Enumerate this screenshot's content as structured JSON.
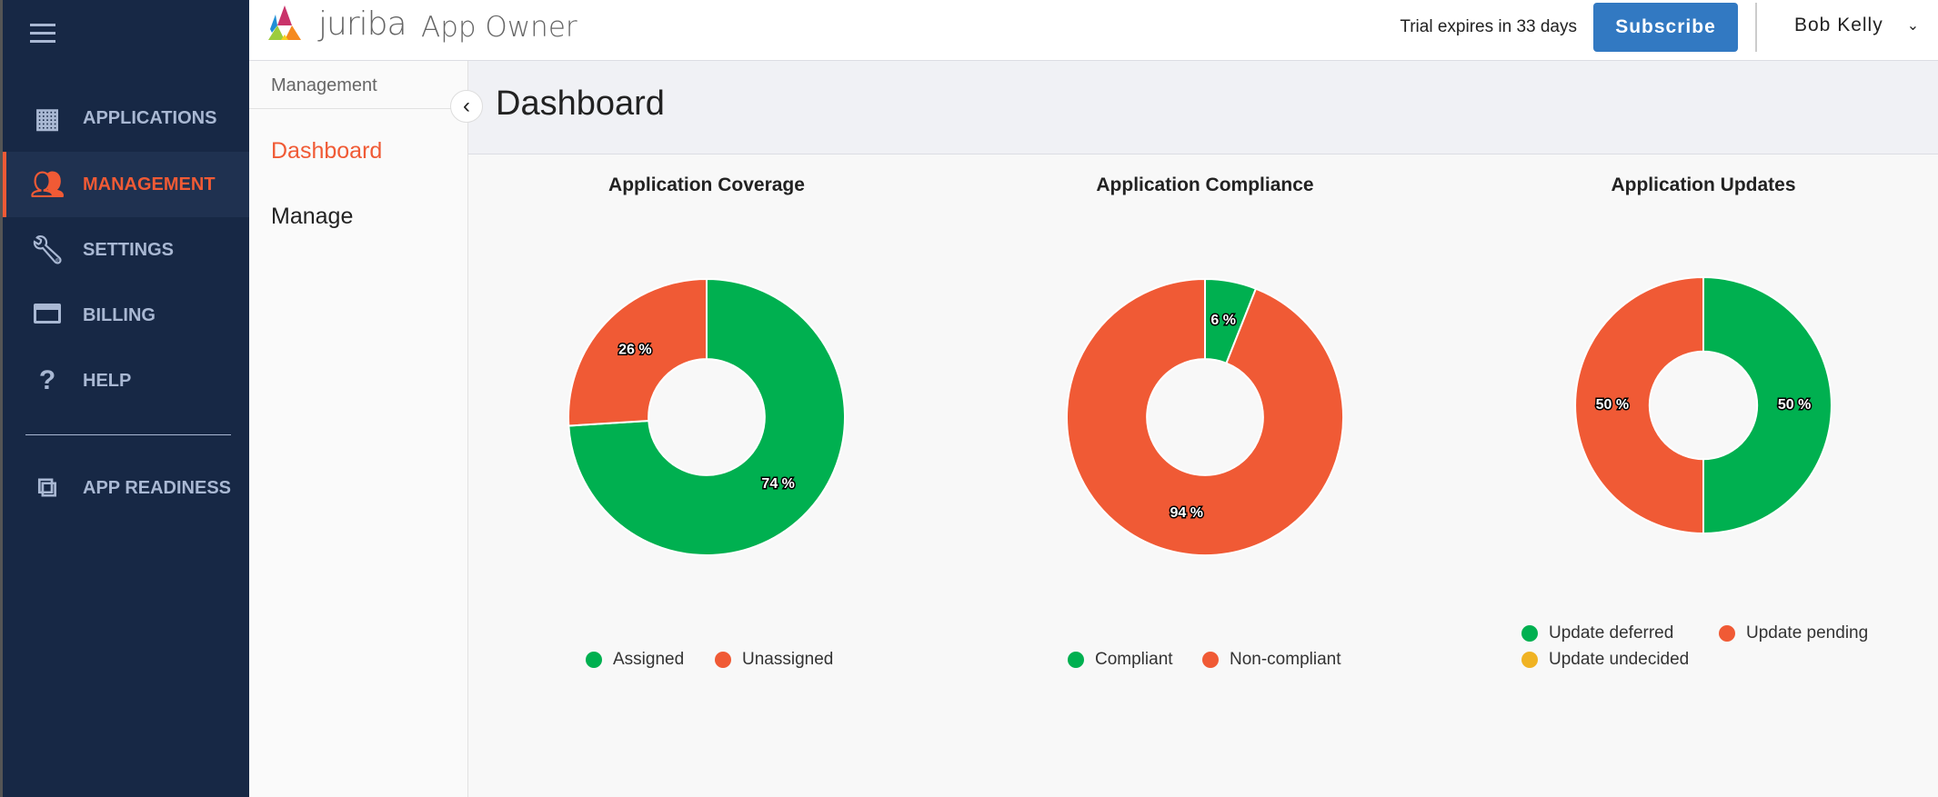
{
  "header": {
    "brand": "juriba",
    "product": "App Owner",
    "trial": "Trial expires in 33 days",
    "subscribe": "Subscribe",
    "user": "Bob Kelly"
  },
  "sidebar": {
    "items": [
      {
        "label": "APPLICATIONS",
        "icon": "grid-icon"
      },
      {
        "label": "MANAGEMENT",
        "icon": "people-icon",
        "active": true
      },
      {
        "label": "SETTINGS",
        "icon": "wrench-icon"
      },
      {
        "label": "BILLING",
        "icon": "credit-card-icon"
      },
      {
        "label": "HELP",
        "icon": "help-icon"
      },
      {
        "label": "APP READINESS",
        "icon": "external-link-icon"
      }
    ]
  },
  "subnav": {
    "heading": "Management",
    "items": [
      {
        "label": "Dashboard",
        "active": true
      },
      {
        "label": "Manage"
      }
    ]
  },
  "page": {
    "title": "Dashboard"
  },
  "colors": {
    "green": "#00b050",
    "orange": "#f05a35",
    "yellow": "#f0b323",
    "accent": "#f05a35",
    "subscribe": "#3279c2"
  },
  "chart_data": [
    {
      "type": "pie",
      "title": "Application Coverage",
      "categories": [
        "Assigned",
        "Unassigned"
      ],
      "values": [
        74,
        26
      ],
      "colors": [
        "#00b050",
        "#f05a35"
      ],
      "legend": "bottom"
    },
    {
      "type": "pie",
      "title": "Application Compliance",
      "categories": [
        "Compliant",
        "Non-compliant"
      ],
      "values": [
        6,
        94
      ],
      "colors": [
        "#00b050",
        "#f05a35"
      ],
      "legend": "bottom"
    },
    {
      "type": "pie",
      "title": "Application Updates",
      "categories": [
        "Update deferred",
        "Update pending",
        "Update undecided"
      ],
      "values": [
        50,
        50,
        0
      ],
      "colors": [
        "#00b050",
        "#f05a35",
        "#f0b323"
      ],
      "legend": "bottom"
    }
  ]
}
